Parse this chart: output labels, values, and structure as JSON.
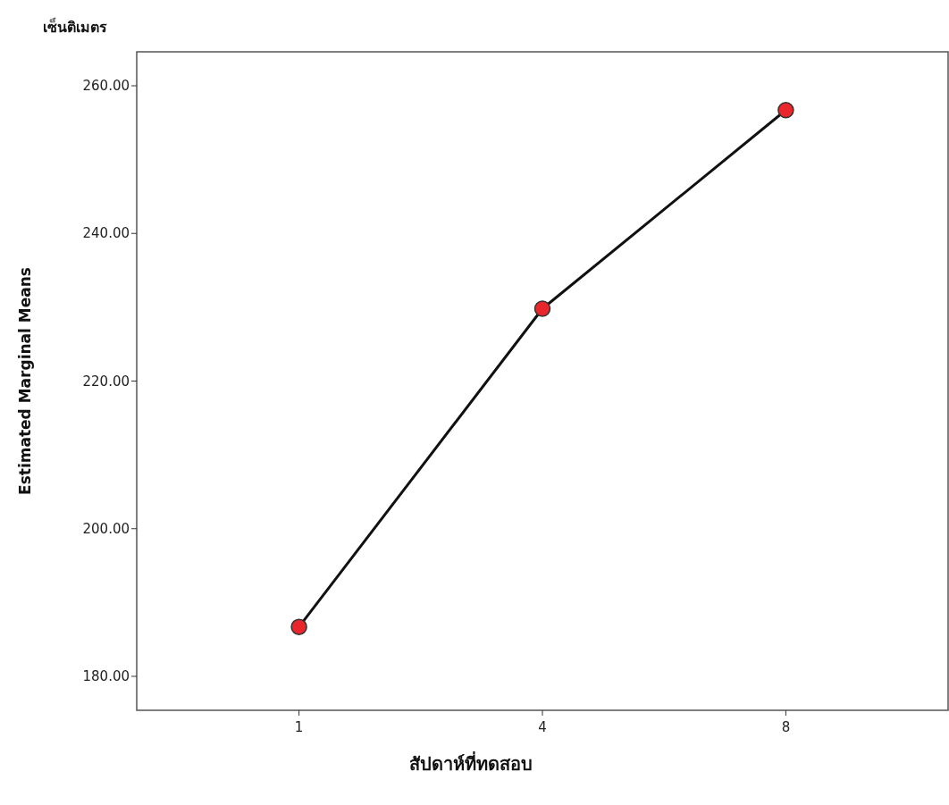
{
  "chart_data": {
    "type": "line",
    "xlabel": "สัปดาห์ที่ทดสอบ",
    "ylabel": "Estimated Marginal Means",
    "annotations": [
      "เซ็นติเมตร"
    ],
    "categories": [
      "1",
      "4",
      "8"
    ],
    "values": [
      186.7,
      229.8,
      256.7
    ],
    "color": "#e8262b",
    "marker": "circle",
    "line_style": "solid",
    "grid": false,
    "ylim": [
      175.4,
      264.6
    ],
    "yticks": [
      {
        "value": 180,
        "label": "180.00"
      },
      {
        "value": 200,
        "label": "200.00"
      },
      {
        "value": 220,
        "label": "220.00"
      },
      {
        "value": 240,
        "label": "240.00"
      },
      {
        "value": 260,
        "label": "260.00"
      }
    ]
  }
}
